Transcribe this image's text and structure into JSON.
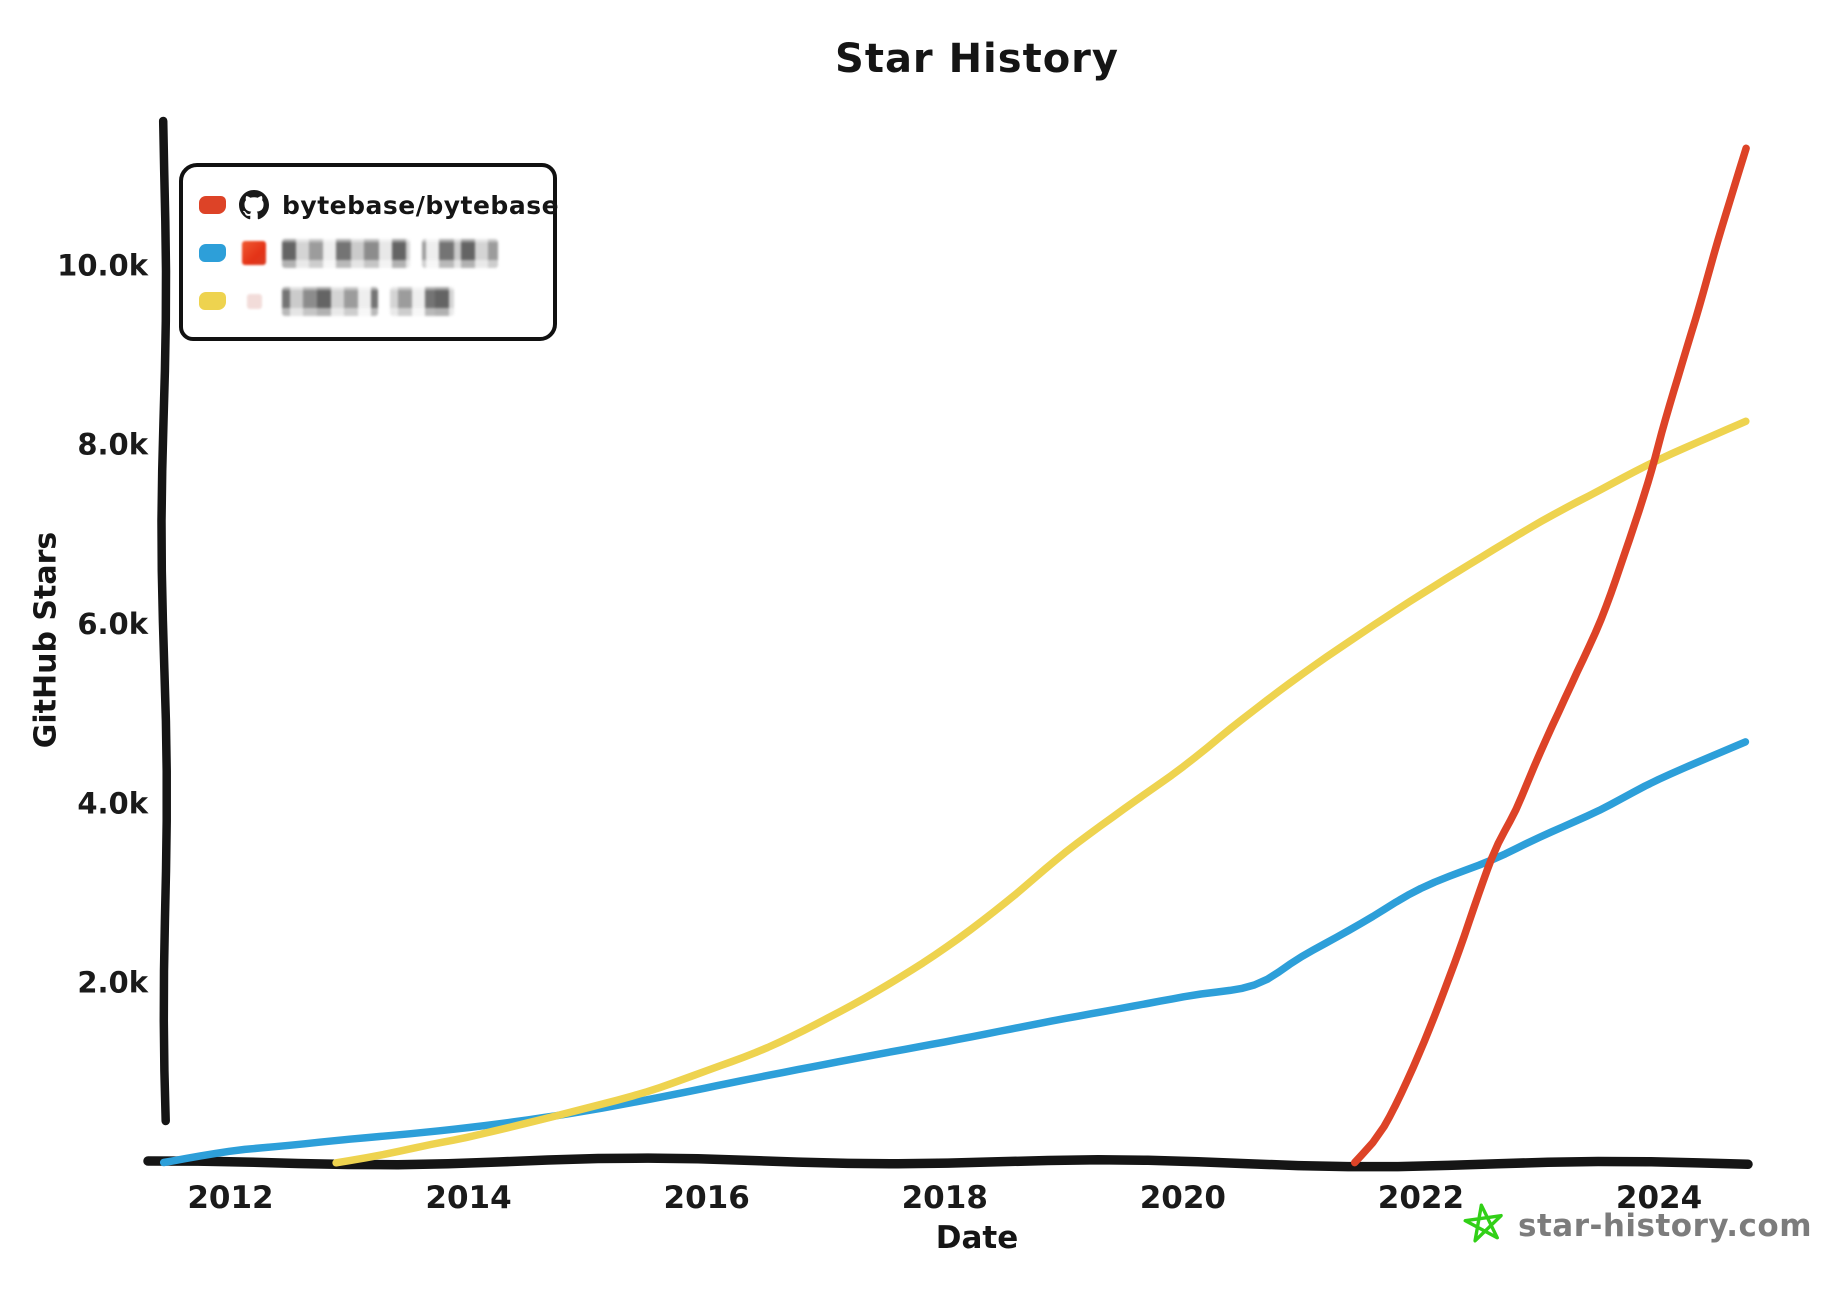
{
  "watermark": {
    "site": "star-history.com",
    "star_color": "#31d017"
  },
  "legend": {
    "items": [
      {
        "label": "bytebase/bytebase",
        "avatar": "github-octocat",
        "redacted": false
      },
      {
        "label": "",
        "avatar": "blurred-avatar-red",
        "redacted": true
      },
      {
        "label": "",
        "avatar": "blurred-avatar-pink",
        "redacted": true
      }
    ]
  },
  "chart_data": {
    "type": "line",
    "title": "Star History",
    "xlabel": "Date",
    "ylabel": "GitHub Stars",
    "x_ticks": [
      2012,
      2014,
      2016,
      2018,
      2020,
      2022,
      2024
    ],
    "y_ticks": [
      {
        "value": 2000,
        "label": "2.0k"
      },
      {
        "value": 4000,
        "label": "4.0k"
      },
      {
        "value": 6000,
        "label": "6.0k"
      },
      {
        "value": 8000,
        "label": "8.0k"
      },
      {
        "value": 10000,
        "label": "10.0k"
      }
    ],
    "xlim": [
      2011.45,
      2025.1
    ],
    "ylim": [
      0,
      11620
    ],
    "grid": false,
    "legend_position": "top-left",
    "axis_color": "#151515",
    "series": [
      {
        "name": "bytebase/bytebase",
        "color": "#dd4327",
        "redacted": false,
        "z": 3,
        "points": [
          [
            2021.45,
            0
          ],
          [
            2021.7,
            400
          ],
          [
            2022.0,
            1200
          ],
          [
            2022.3,
            2200
          ],
          [
            2022.6,
            3350
          ],
          [
            2022.8,
            3900
          ],
          [
            2023.0,
            4550
          ],
          [
            2023.25,
            5300
          ],
          [
            2023.5,
            6050
          ],
          [
            2023.7,
            6800
          ],
          [
            2023.9,
            7600
          ],
          [
            2024.05,
            8300
          ],
          [
            2024.2,
            8950
          ],
          [
            2024.35,
            9600
          ],
          [
            2024.5,
            10300
          ],
          [
            2024.73,
            11300
          ]
        ]
      },
      {
        "name": "",
        "color": "#2d9fd9",
        "redacted": true,
        "z": 1,
        "points": [
          [
            2011.45,
            0
          ],
          [
            2012,
            110
          ],
          [
            2012.5,
            170
          ],
          [
            2013,
            240
          ],
          [
            2013.5,
            310
          ],
          [
            2014,
            390
          ],
          [
            2014.5,
            480
          ],
          [
            2015,
            580
          ],
          [
            2015.5,
            690
          ],
          [
            2016,
            810
          ],
          [
            2017,
            1060
          ],
          [
            2018,
            1330
          ],
          [
            2019,
            1620
          ],
          [
            2020,
            1870
          ],
          [
            2020.6,
            1990
          ],
          [
            2021,
            2300
          ],
          [
            2021.5,
            2660
          ],
          [
            2022,
            3040
          ],
          [
            2022.6,
            3350
          ],
          [
            2023,
            3600
          ],
          [
            2023.5,
            3900
          ],
          [
            2024,
            4250
          ],
          [
            2024.73,
            4680
          ]
        ]
      },
      {
        "name": "",
        "color": "#eed34f",
        "redacted": true,
        "z": 2,
        "points": [
          [
            2012.9,
            0
          ],
          [
            2013.3,
            80
          ],
          [
            2013.7,
            180
          ],
          [
            2014,
            250
          ],
          [
            2014.5,
            400
          ],
          [
            2015,
            570
          ],
          [
            2015.5,
            760
          ],
          [
            2016,
            1010
          ],
          [
            2016.5,
            1280
          ],
          [
            2017,
            1620
          ],
          [
            2017.5,
            2000
          ],
          [
            2018,
            2430
          ],
          [
            2018.5,
            2930
          ],
          [
            2019,
            3480
          ],
          [
            2019.5,
            3960
          ],
          [
            2020,
            4420
          ],
          [
            2020.5,
            4940
          ],
          [
            2021,
            5430
          ],
          [
            2021.5,
            5880
          ],
          [
            2022,
            6310
          ],
          [
            2022.5,
            6720
          ],
          [
            2023,
            7120
          ],
          [
            2023.5,
            7480
          ],
          [
            2024,
            7830
          ],
          [
            2024.73,
            8270
          ]
        ]
      }
    ]
  }
}
